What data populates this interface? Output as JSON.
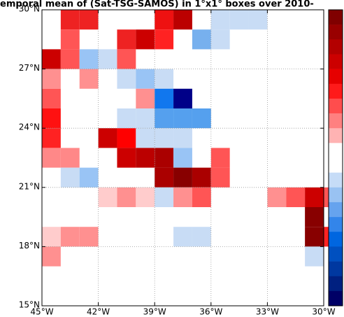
{
  "chart_data": {
    "type": "heatmap",
    "title": "emporal mean of (Sat-TSG-SAMOS) in 1°x1° boxes over 2010-",
    "xlim": [
      -45,
      -30
    ],
    "ylim": [
      15,
      30
    ],
    "xticks": [
      {
        "value": -45,
        "label": "45°W"
      },
      {
        "value": -42,
        "label": "42°W"
      },
      {
        "value": -39,
        "label": "39°W"
      },
      {
        "value": -36,
        "label": "36°W"
      },
      {
        "value": -33,
        "label": "33°W"
      },
      {
        "value": -30,
        "label": "30°W"
      }
    ],
    "yticks": [
      {
        "value": 15,
        "label": "15°N"
      },
      {
        "value": 18,
        "label": "18°N"
      },
      {
        "value": 21,
        "label": "21°N"
      },
      {
        "value": 24,
        "label": "24°N"
      },
      {
        "value": 27,
        "label": "27°N"
      },
      {
        "value": 30,
        "label": "30°N"
      }
    ],
    "grid": true,
    "colorbar_colors": [
      "#800000",
      "#990000",
      "#b30000",
      "#cc0000",
      "#e60000",
      "#ff1a1a",
      "#ff4d4d",
      "#ff8080",
      "#ffb3b3",
      "#ffffff",
      "#ffffff",
      "#c6dcf7",
      "#99c2f2",
      "#66a3ee",
      "#3385ea",
      "#0066e0",
      "#0050c0",
      "#0038a0",
      "#002080",
      "#000066"
    ],
    "cells": [
      {
        "lon": -44,
        "lat": 29,
        "color": "#ee2222"
      },
      {
        "lon": -43,
        "lat": 29,
        "color": "#ee2222"
      },
      {
        "lon": -39,
        "lat": 29,
        "color": "#ee1111"
      },
      {
        "lon": -38,
        "lat": 29,
        "color": "#bb0000"
      },
      {
        "lon": -36,
        "lat": 29,
        "color": "#c8dcf5"
      },
      {
        "lon": -35,
        "lat": 29,
        "color": "#c8dcf5"
      },
      {
        "lon": -34,
        "lat": 29,
        "color": "#c8dcf5"
      },
      {
        "lon": -44,
        "lat": 28,
        "color": "#ff5555"
      },
      {
        "lon": -41,
        "lat": 28,
        "color": "#ee2222"
      },
      {
        "lon": -40,
        "lat": 28,
        "color": "#cc0000"
      },
      {
        "lon": -39,
        "lat": 28,
        "color": "#ff2222"
      },
      {
        "lon": -37,
        "lat": 28,
        "color": "#77b0ee"
      },
      {
        "lon": -36,
        "lat": 28,
        "color": "#c8dcf5"
      },
      {
        "lon": -45,
        "lat": 27,
        "color": "#cc0000"
      },
      {
        "lon": -44,
        "lat": 27,
        "color": "#ff5555"
      },
      {
        "lon": -43,
        "lat": 27,
        "color": "#99c4f5"
      },
      {
        "lon": -42,
        "lat": 27,
        "color": "#c8dcf5"
      },
      {
        "lon": -41,
        "lat": 27,
        "color": "#ff5555"
      },
      {
        "lon": -45,
        "lat": 26,
        "color": "#ff9090"
      },
      {
        "lon": -43,
        "lat": 26,
        "color": "#ff9090"
      },
      {
        "lon": -41,
        "lat": 26,
        "color": "#c8dcf5"
      },
      {
        "lon": -40,
        "lat": 26,
        "color": "#99c4f5"
      },
      {
        "lon": -39,
        "lat": 26,
        "color": "#c8dcf5"
      },
      {
        "lon": -45,
        "lat": 25,
        "color": "#ff5555"
      },
      {
        "lon": -40,
        "lat": 25,
        "color": "#ff9090"
      },
      {
        "lon": -39,
        "lat": 25,
        "color": "#1177ee"
      },
      {
        "lon": -38,
        "lat": 25,
        "color": "#000088"
      },
      {
        "lon": -45,
        "lat": 24,
        "color": "#ff1111"
      },
      {
        "lon": -41,
        "lat": 24,
        "color": "#c8dcf5"
      },
      {
        "lon": -40,
        "lat": 24,
        "color": "#c8dcf5"
      },
      {
        "lon": -39,
        "lat": 24,
        "color": "#55a0ee"
      },
      {
        "lon": -38,
        "lat": 24,
        "color": "#55a0ee"
      },
      {
        "lon": -37,
        "lat": 24,
        "color": "#55a0ee"
      },
      {
        "lon": -45,
        "lat": 23,
        "color": "#ff2222"
      },
      {
        "lon": -42,
        "lat": 23,
        "color": "#cc0000"
      },
      {
        "lon": -41,
        "lat": 23,
        "color": "#ff0000"
      },
      {
        "lon": -40,
        "lat": 23,
        "color": "#c8dcf5"
      },
      {
        "lon": -39,
        "lat": 23,
        "color": "#c8dcf5"
      },
      {
        "lon": -38,
        "lat": 23,
        "color": "#c8dcf5"
      },
      {
        "lon": -45,
        "lat": 22,
        "color": "#ff8888"
      },
      {
        "lon": -44,
        "lat": 22,
        "color": "#ff8888"
      },
      {
        "lon": -41,
        "lat": 22,
        "color": "#cc0000"
      },
      {
        "lon": -40,
        "lat": 22,
        "color": "#bb0000"
      },
      {
        "lon": -39,
        "lat": 22,
        "color": "#aa0000"
      },
      {
        "lon": -38,
        "lat": 22,
        "color": "#99c4f5"
      },
      {
        "lon": -36,
        "lat": 22,
        "color": "#ff5555"
      },
      {
        "lon": -44,
        "lat": 21,
        "color": "#c8dcf5"
      },
      {
        "lon": -43,
        "lat": 21,
        "color": "#99c4f5"
      },
      {
        "lon": -39,
        "lat": 21,
        "color": "#aa0000"
      },
      {
        "lon": -38,
        "lat": 21,
        "color": "#880000"
      },
      {
        "lon": -37,
        "lat": 21,
        "color": "#aa0000"
      },
      {
        "lon": -36,
        "lat": 21,
        "color": "#ff5555"
      },
      {
        "lon": -42,
        "lat": 20,
        "color": "#ffcccc"
      },
      {
        "lon": -41,
        "lat": 20,
        "color": "#ff9090"
      },
      {
        "lon": -40,
        "lat": 20,
        "color": "#ffcccc"
      },
      {
        "lon": -39,
        "lat": 20,
        "color": "#c8dcf5"
      },
      {
        "lon": -38,
        "lat": 20,
        "color": "#ff9090"
      },
      {
        "lon": -37,
        "lat": 20,
        "color": "#ff5555"
      },
      {
        "lon": -33,
        "lat": 20,
        "color": "#ff9090"
      },
      {
        "lon": -32,
        "lat": 20,
        "color": "#ff5555"
      },
      {
        "lon": -31,
        "lat": 20,
        "color": "#cc0000"
      },
      {
        "lon": -30,
        "lat": 20,
        "color": "#ff5555"
      },
      {
        "lon": -31,
        "lat": 19,
        "color": "#880000"
      },
      {
        "lon": -45,
        "lat": 18,
        "color": "#ffcccc"
      },
      {
        "lon": -44,
        "lat": 18,
        "color": "#ff9090"
      },
      {
        "lon": -43,
        "lat": 18,
        "color": "#ff9090"
      },
      {
        "lon": -38,
        "lat": 18,
        "color": "#c8dcf5"
      },
      {
        "lon": -37,
        "lat": 18,
        "color": "#c8dcf5"
      },
      {
        "lon": -31,
        "lat": 18,
        "color": "#880000"
      },
      {
        "lon": -30,
        "lat": 18,
        "color": "#ff2222"
      },
      {
        "lon": -45,
        "lat": 17,
        "color": "#ff9090"
      },
      {
        "lon": -31,
        "lat": 17,
        "color": "#c8dcf5"
      }
    ]
  }
}
